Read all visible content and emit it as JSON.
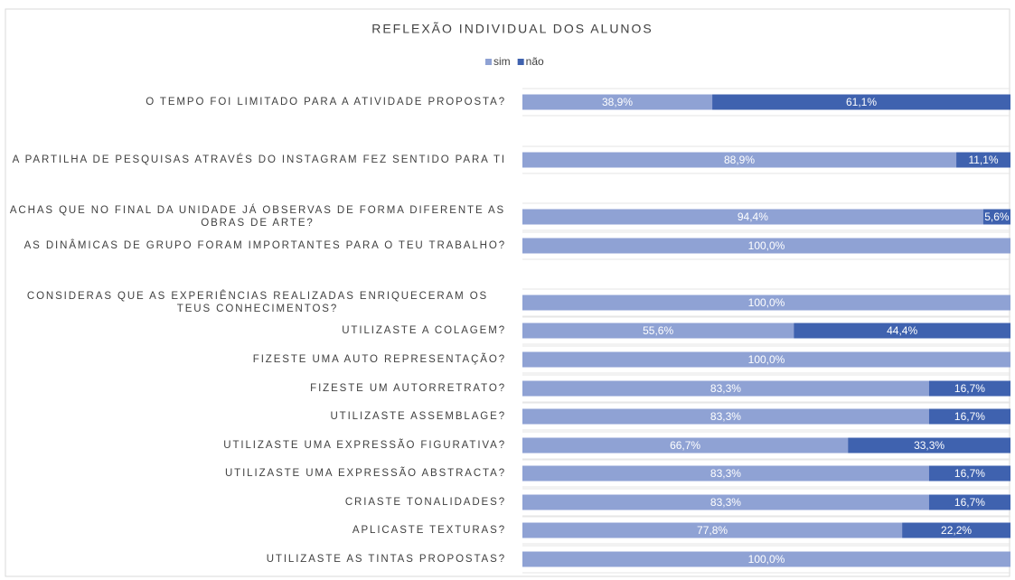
{
  "chart_data": {
    "type": "stacked_barh",
    "title": "REFLEXÃO INDIVIDUAL DOS ALUNOS",
    "categories": [
      "O TEMPO FOI LIMITADO PARA A ATIVIDADE PROPOSTA?",
      "A PARTILHA DE PESQUISAS ATRAVÉS DO INSTAGRAM FEZ SENTIDO PARA TI",
      "ACHAS QUE NO FINAL DA UNIDADE JÁ OBSERVAS DE FORMA DIFERENTE AS OBRAS DE ARTE?",
      "AS DINÂMICAS DE GRUPO FORAM IMPORTANTES PARA O TEU TRABALHO?",
      "CONSIDERAS QUE AS EXPERIÊNCIAS REALIZADAS ENRIQUECERAM OS TEUS CONHECIMENTOS?",
      "UTILIZASTE A COLAGEM?",
      "FIZESTE UMA AUTO REPRESENTAÇÃO?",
      "FIZESTE UM AUTORRETRATO?",
      "UTILIZASTE ASSEMBLAGE?",
      "UTILIZASTE UMA EXPRESSÃO FIGURATIVA?",
      "UTILIZASTE UMA EXPRESSÃO ABSTRACTA?",
      "CRIASTE TONALIDADES?",
      "APLICASTE TEXTURAS?",
      "UTILIZASTE AS TINTAS PROPOSTAS?"
    ],
    "series": [
      {
        "name": "sim",
        "color": "#8fa2d4",
        "values": [
          38.9,
          88.9,
          94.4,
          100,
          100,
          55.6,
          100,
          83.3,
          83.3,
          66.7,
          83.3,
          83.3,
          77.8,
          100
        ],
        "value_labels": [
          "38,9%",
          "88,9%",
          "94,4%",
          "100,0%",
          "100,0%",
          "55,6%",
          "100,0%",
          "83,3%",
          "83,3%",
          "66,7%",
          "83,3%",
          "83,3%",
          "77,8%",
          "100,0%"
        ]
      },
      {
        "name": "não",
        "color": "#3f62af",
        "values": [
          61.1,
          11.1,
          5.6,
          null,
          null,
          44.4,
          null,
          16.7,
          16.7,
          33.3,
          16.7,
          16.7,
          22.2,
          null
        ],
        "value_labels": [
          "61,1%",
          "11,1%",
          "5,6%",
          null,
          null,
          "44,4%",
          null,
          "16,7%",
          "16,7%",
          "33,3%",
          "16,7%",
          "16,7%",
          "22,2%",
          null
        ]
      }
    ],
    "xlim": [
      0,
      100
    ],
    "legend": "top"
  }
}
